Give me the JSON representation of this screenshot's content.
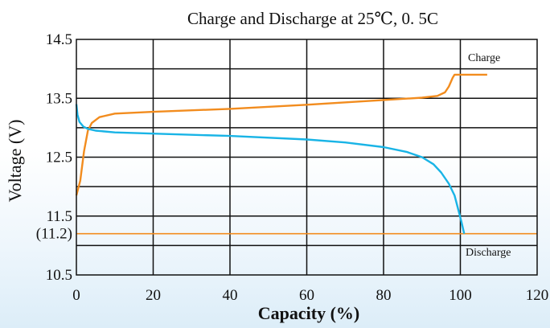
{
  "chart_data": {
    "type": "line",
    "title": "Charge and Discharge  at 25℃, 0. 5C",
    "xlabel": "Capacity (%)",
    "ylabel": "Voltage (V)",
    "xlim": [
      0,
      120
    ],
    "ylim": [
      10.5,
      14.5
    ],
    "x_ticks": [
      "0",
      "20",
      "40",
      "60",
      "80",
      "100",
      "120"
    ],
    "y_ticks": [
      {
        "value": 14.5,
        "label": "14.5"
      },
      {
        "value": 13.5,
        "label": "13.5"
      },
      {
        "value": 12.5,
        "label": "12.5"
      },
      {
        "value": 11.5,
        "label": "11.5"
      },
      {
        "value": 11.2,
        "label": "(11.2)"
      },
      {
        "value": 10.5,
        "label": "10.5"
      }
    ],
    "grid": true,
    "series": [
      {
        "name": "Charge",
        "color": "#f28c1e",
        "points": [
          [
            0,
            11.85
          ],
          [
            1,
            12.1
          ],
          [
            2,
            12.6
          ],
          [
            3,
            12.95
          ],
          [
            4,
            13.08
          ],
          [
            6,
            13.18
          ],
          [
            10,
            13.24
          ],
          [
            20,
            13.27
          ],
          [
            40,
            13.32
          ],
          [
            60,
            13.39
          ],
          [
            80,
            13.47
          ],
          [
            90,
            13.51
          ],
          [
            94,
            13.54
          ],
          [
            96,
            13.6
          ],
          [
            97,
            13.7
          ],
          [
            98,
            13.85
          ],
          [
            98.5,
            13.9
          ],
          [
            107,
            13.9
          ]
        ]
      },
      {
        "name": "Discharge",
        "color": "#19b4e6",
        "points": [
          [
            0,
            13.4
          ],
          [
            0.3,
            13.22
          ],
          [
            0.8,
            13.1
          ],
          [
            1.8,
            13.02
          ],
          [
            3,
            12.98
          ],
          [
            5,
            12.95
          ],
          [
            10,
            12.92
          ],
          [
            20,
            12.9
          ],
          [
            40,
            12.86
          ],
          [
            60,
            12.8
          ],
          [
            70,
            12.75
          ],
          [
            80,
            12.67
          ],
          [
            86,
            12.59
          ],
          [
            90,
            12.5
          ],
          [
            93,
            12.38
          ],
          [
            95,
            12.24
          ],
          [
            97,
            12.05
          ],
          [
            98.5,
            11.85
          ],
          [
            99.5,
            11.6
          ],
          [
            100.3,
            11.4
          ],
          [
            101,
            11.2
          ]
        ]
      }
    ],
    "reference_lines": [
      {
        "value": 11.2,
        "color": "#f28c1e"
      }
    ],
    "annotations": [
      {
        "text": "Charge",
        "attach": "charge"
      },
      {
        "text": "Discharge",
        "attach": "discharge"
      }
    ]
  }
}
